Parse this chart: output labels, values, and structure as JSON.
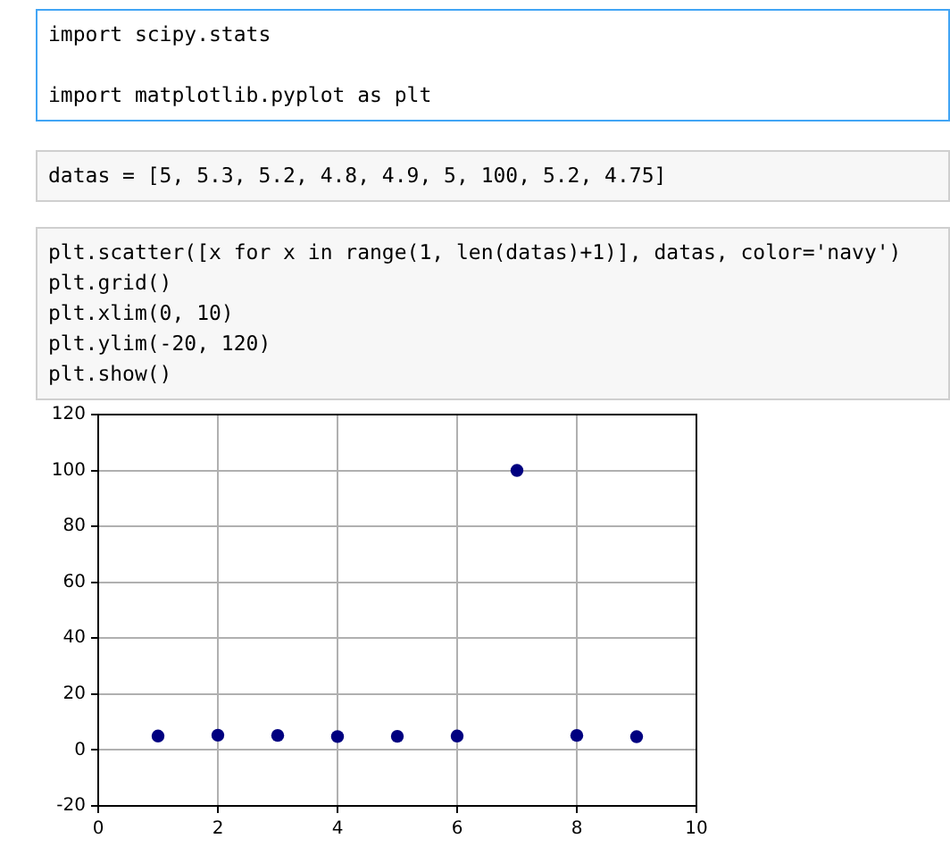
{
  "chart_data": {
    "type": "scatter",
    "x": [
      1,
      2,
      3,
      4,
      5,
      6,
      7,
      8,
      9
    ],
    "values": [
      5,
      5.3,
      5.2,
      4.8,
      4.9,
      5,
      100,
      5.2,
      4.75
    ],
    "color": "#000080",
    "xlim": [
      0,
      10
    ],
    "xticks": [
      0,
      2,
      4,
      6,
      8,
      10
    ],
    "ylim": [
      -20,
      120
    ],
    "yticks": [
      -20,
      0,
      20,
      40,
      60,
      80,
      100,
      120
    ],
    "grid": true,
    "marker": "circle",
    "legend": false,
    "annotations": [
      "import scipy.stats\n\nimport matplotlib.pyplot as plt",
      "datas = [5, 5.3, 5.2, 4.8, 4.9, 5, 100, 5.2, 4.75]",
      "plt.scatter([x for x in range(1, len(datas)+1)], datas, color='navy')\nplt.grid()\nplt.xlim(0, 10)\nplt.ylim(-20, 120)\nplt.show()"
    ]
  }
}
